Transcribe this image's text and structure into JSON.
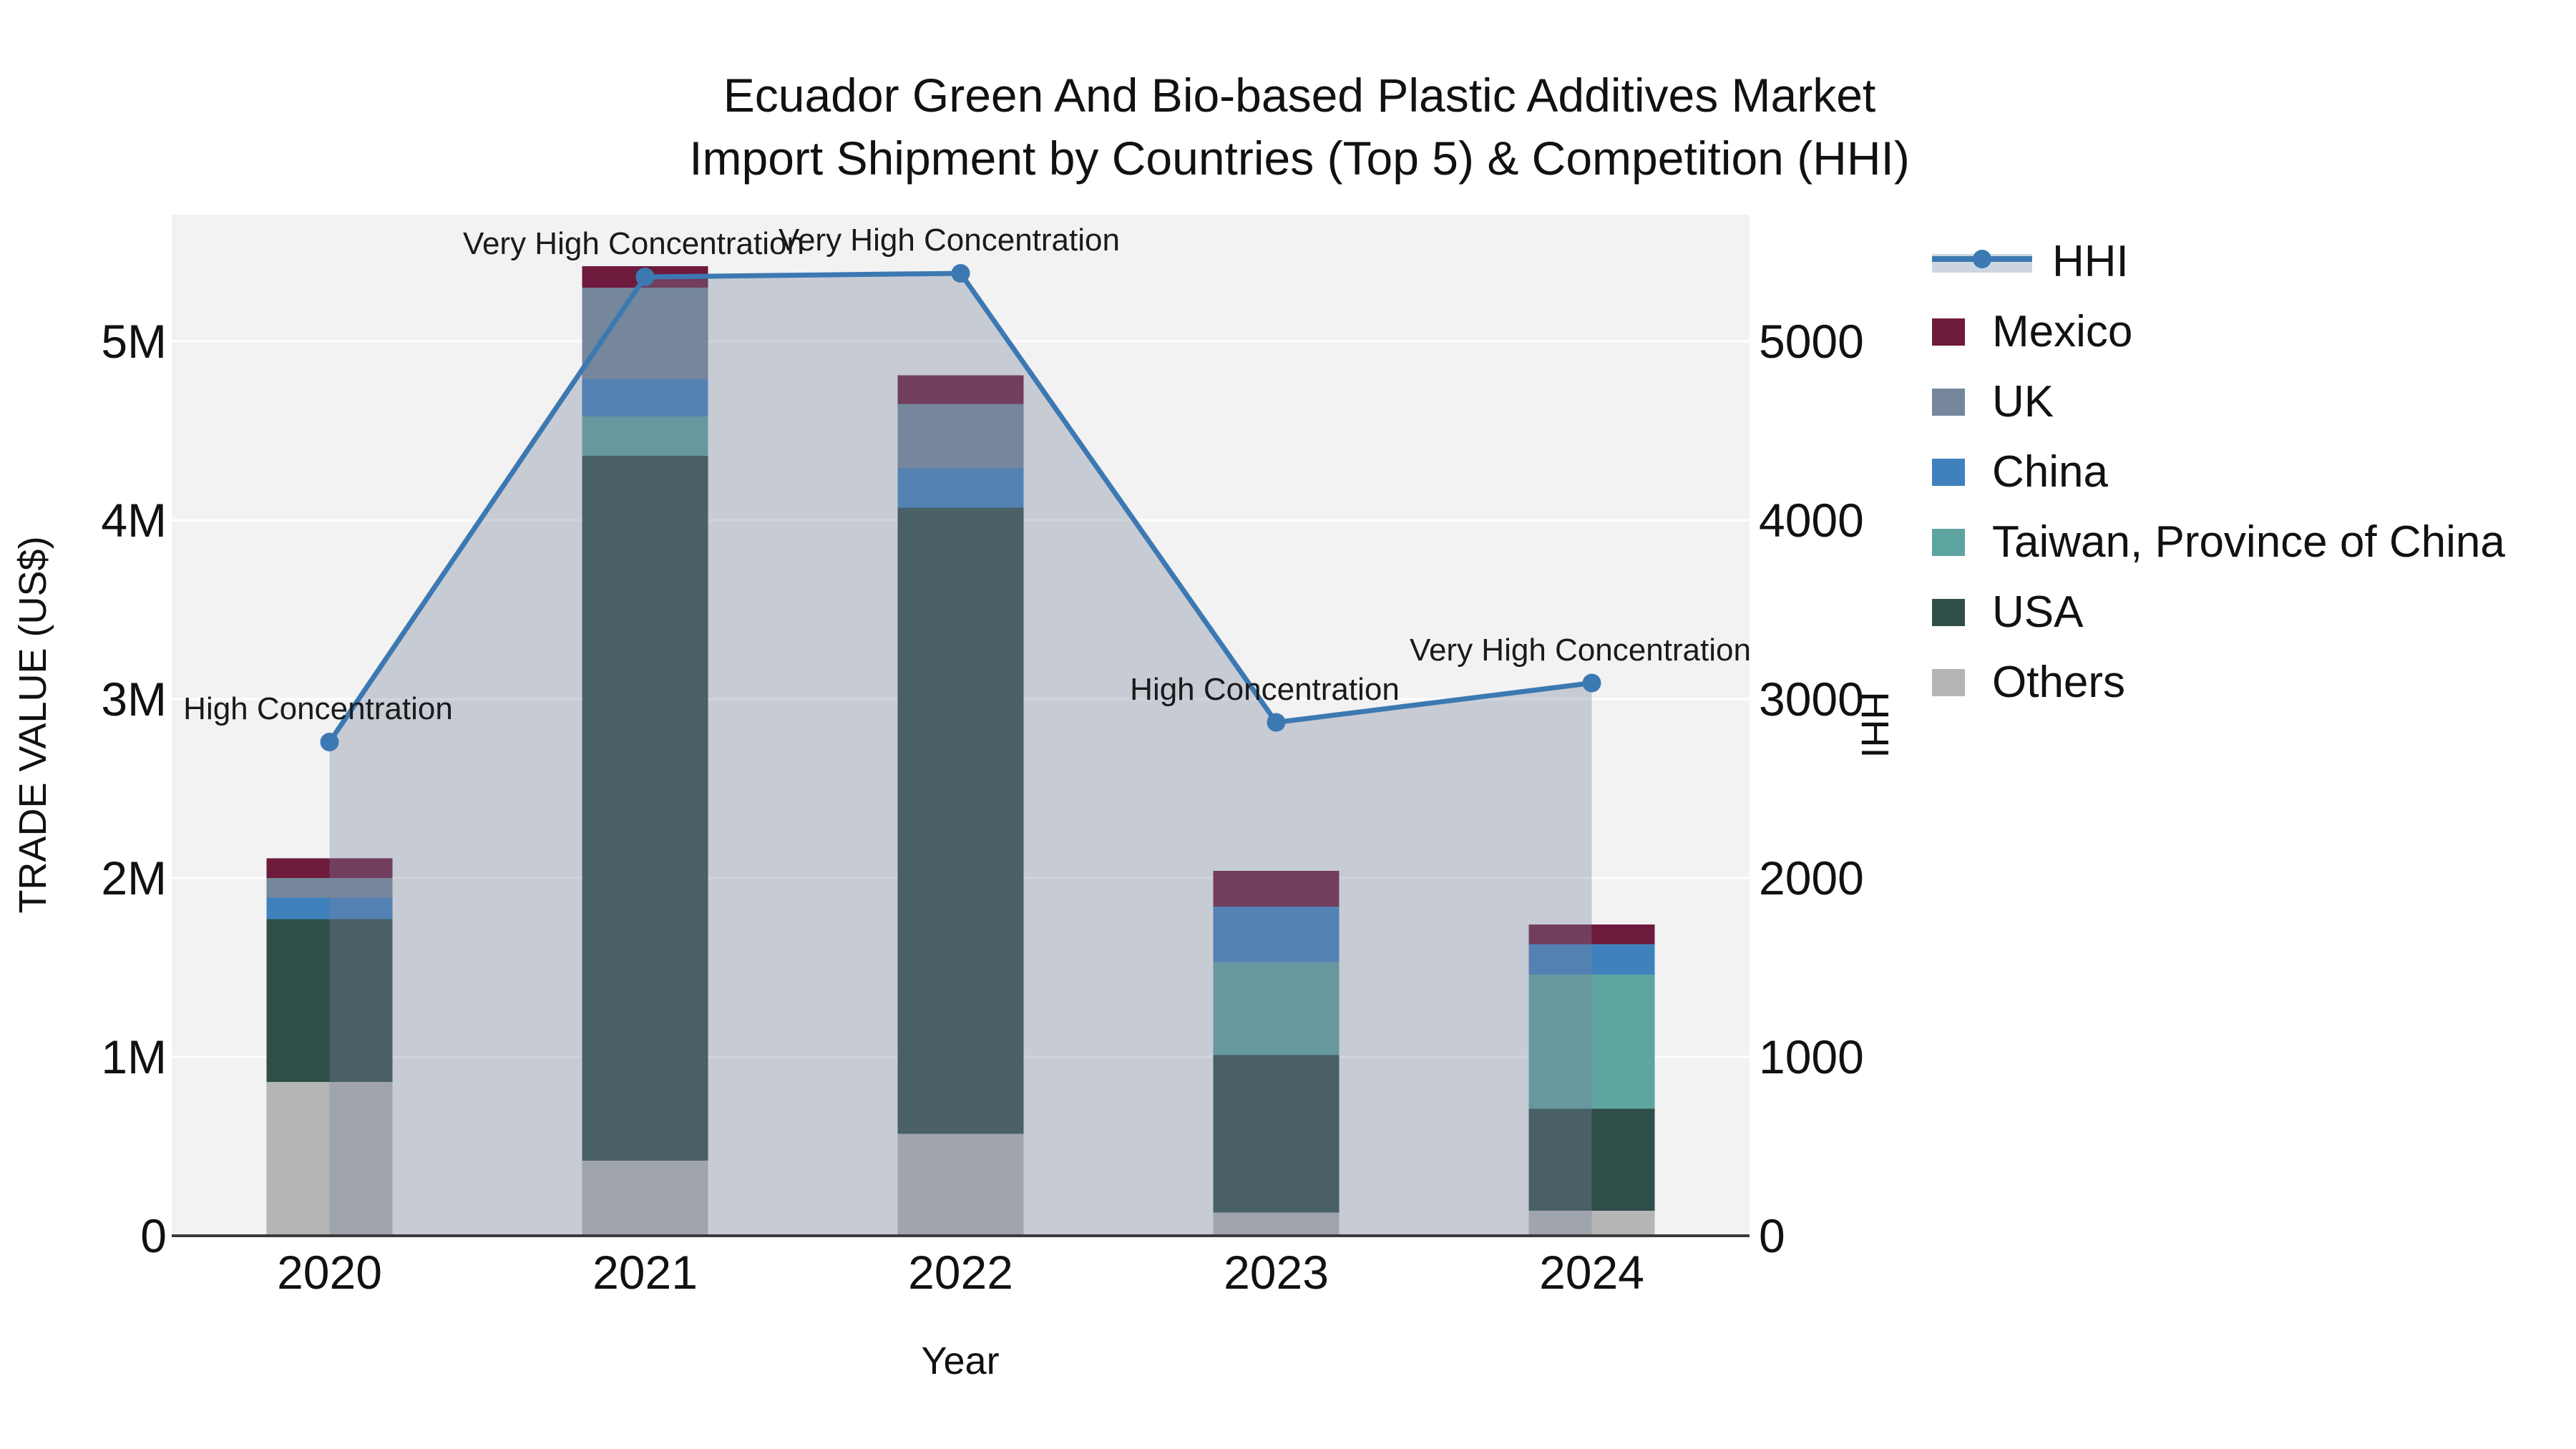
{
  "title": {
    "line1": "Ecuador Green And Bio-based Plastic Additives Market",
    "line2": "Import Shipment by Countries (Top 5) & Competition (HHI)"
  },
  "axes": {
    "left": {
      "title": "TRADE VALUE (US$)",
      "ticks": [
        "0",
        "1M",
        "2M",
        "3M",
        "4M",
        "5M"
      ]
    },
    "right": {
      "title": "HHI",
      "ticks": [
        "0",
        "1000",
        "2000",
        "3000",
        "4000",
        "5000"
      ]
    },
    "x": {
      "title": "Year",
      "ticks": [
        "2020",
        "2021",
        "2022",
        "2023",
        "2024"
      ]
    }
  },
  "legend": {
    "items": [
      {
        "label": "HHI",
        "type": "line",
        "color": "#3c79b2"
      },
      {
        "label": "Mexico",
        "type": "swatch",
        "color": "#6d1a3c"
      },
      {
        "label": "UK",
        "type": "swatch",
        "color": "#76879b"
      },
      {
        "label": "China",
        "type": "swatch",
        "color": "#3f81bd"
      },
      {
        "label": "Taiwan, Province of China",
        "type": "swatch",
        "color": "#5ea4a0"
      },
      {
        "label": "USA",
        "type": "swatch",
        "color": "#2f4d49"
      },
      {
        "label": "Others",
        "type": "swatch",
        "color": "#b5b5b5"
      }
    ]
  },
  "colors": {
    "plot_bg": "#f2f2f2",
    "gridline": "#ffffff",
    "axis_line": "#3a3a3a",
    "hhi_line": "#3c79b2",
    "hhi_band_fill": "rgba(120,132,158,0.35)",
    "text": "#111111"
  },
  "chart_data": {
    "type": "bar+line",
    "title": "Ecuador Green And Bio-based Plastic Additives Market Import Shipment by Countries (Top 5) & Competition (HHI)",
    "categories": [
      "2020",
      "2021",
      "2022",
      "2023",
      "2024"
    ],
    "bar_units": "US$ millions",
    "stack_order_bottom_to_top": [
      "Others",
      "USA",
      "Taiwan, Province of China",
      "China",
      "UK",
      "Mexico"
    ],
    "series": [
      {
        "name": "Others",
        "color": "#b5b5b5",
        "values": [
          0.86,
          0.42,
          0.57,
          0.13,
          0.14
        ]
      },
      {
        "name": "USA",
        "color": "#2f4d49",
        "values": [
          0.91,
          3.94,
          3.5,
          0.88,
          0.57
        ]
      },
      {
        "name": "Taiwan, Province of China",
        "color": "#5ea4a0",
        "values": [
          0.0,
          0.22,
          0.0,
          0.52,
          0.75
        ]
      },
      {
        "name": "China",
        "color": "#3f81bd",
        "values": [
          0.12,
          0.21,
          0.22,
          0.31,
          0.17
        ]
      },
      {
        "name": "UK",
        "color": "#76879b",
        "values": [
          0.11,
          0.51,
          0.36,
          0.0,
          0.0
        ]
      },
      {
        "name": "Mexico",
        "color": "#6d1a3c",
        "values": [
          0.11,
          0.12,
          0.16,
          0.2,
          0.11
        ]
      }
    ],
    "bar_totals": [
      2.11,
      5.42,
      4.81,
      2.04,
      1.74
    ],
    "line": {
      "name": "HHI",
      "color": "#3c79b2",
      "axis": "right",
      "values": [
        2760,
        5360,
        5380,
        2870,
        3090
      ]
    },
    "annotations": [
      "High Concentration",
      "Very High Concentration",
      "Very High Concentration",
      "High Concentration",
      "Very High Concentration"
    ],
    "xlabel": "Year",
    "ylabel_left": "TRADE VALUE (US$)",
    "ylabel_right": "HHI",
    "ylim_left": [
      0,
      5700000
    ],
    "ylim_right": [
      0,
      5700
    ],
    "grid": true,
    "legend_position": "right"
  }
}
